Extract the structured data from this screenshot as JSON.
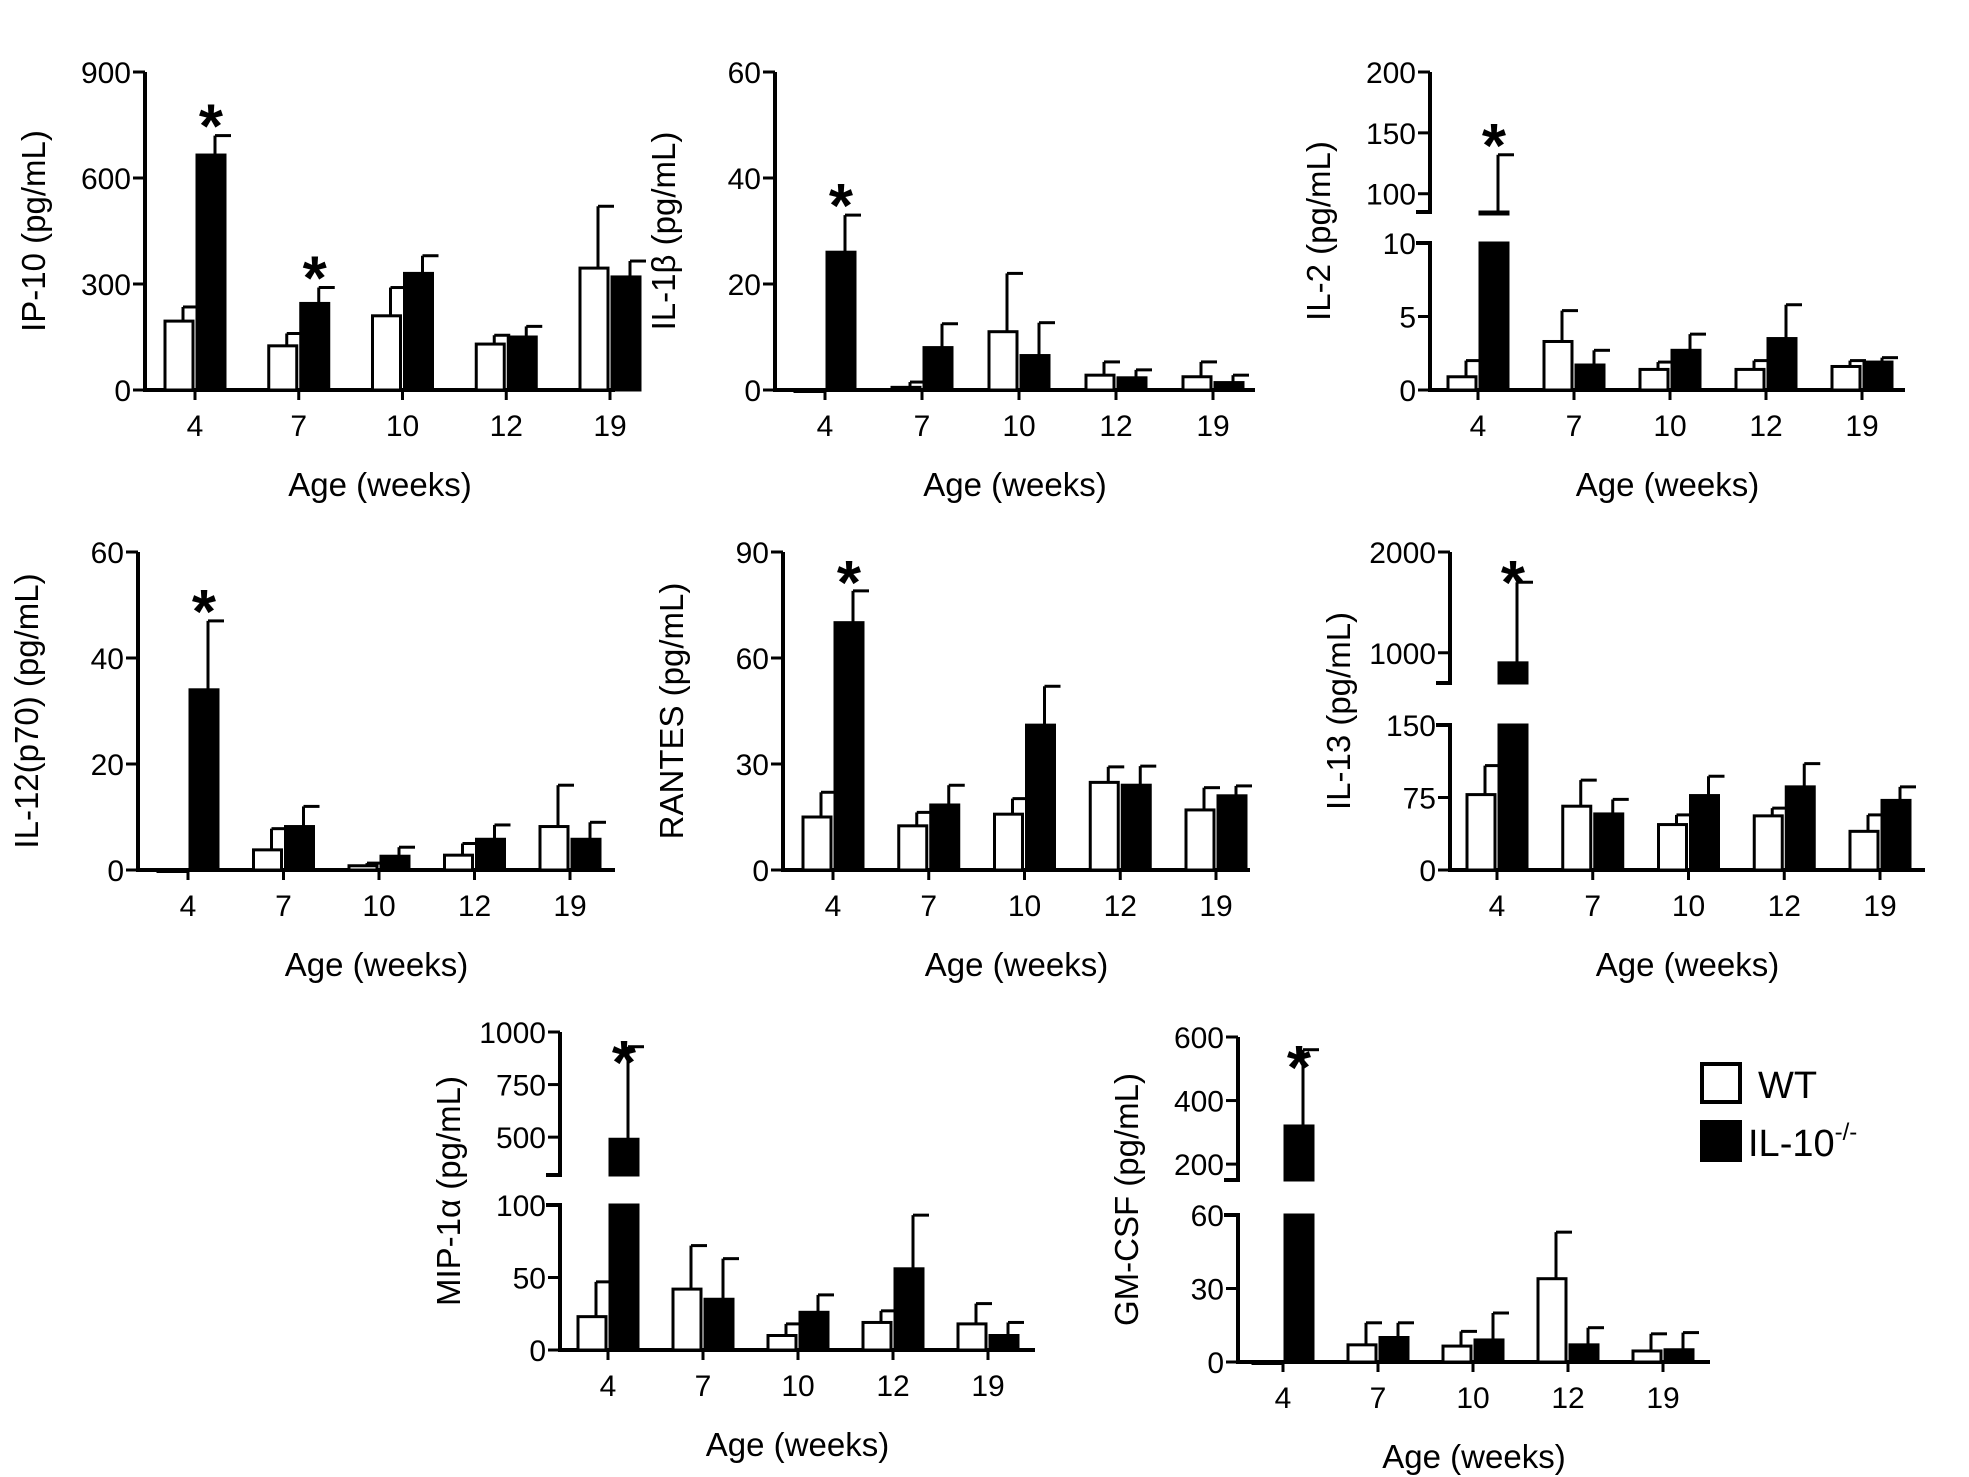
{
  "legend": {
    "wt_label": "WT",
    "ko_label": "IL-10",
    "ko_sup": "-/-"
  },
  "colors": {
    "wt": "#ffffff",
    "ko": "#000000",
    "stroke": "#000000"
  },
  "chart_data": [
    {
      "type": "bar",
      "ylabel": "IP-10 (pg/mL)",
      "xlabel": "Age (weeks)",
      "categories": [
        "4",
        "7",
        "10",
        "12",
        "19"
      ],
      "ylim": [
        0,
        900
      ],
      "yticks": [
        0,
        300,
        600,
        900
      ],
      "series": [
        {
          "name": "WT",
          "values": [
            195,
            125,
            210,
            130,
            345
          ],
          "errors": [
            40,
            35,
            80,
            25,
            175
          ]
        },
        {
          "name": "IL-10-/-",
          "values": [
            665,
            245,
            330,
            150,
            320
          ],
          "errors": [
            55,
            45,
            50,
            30,
            45
          ]
        }
      ],
      "significant": [
        0,
        1
      ]
    },
    {
      "type": "bar",
      "ylabel": "IL-1β (pg/mL)",
      "xlabel": "Age (weeks)",
      "categories": [
        "4",
        "7",
        "10",
        "12",
        "19"
      ],
      "ylim": [
        0,
        60
      ],
      "yticks": [
        0,
        20,
        40,
        60
      ],
      "series": [
        {
          "name": "WT",
          "values": [
            0,
            0.5,
            11,
            2.8,
            2.5
          ],
          "errors": [
            0,
            1,
            11,
            2.5,
            2.8
          ]
        },
        {
          "name": "IL-10-/-",
          "values": [
            26,
            8,
            6.5,
            2.3,
            1.4
          ],
          "errors": [
            7,
            4.5,
            6.2,
            1.5,
            1.4
          ]
        }
      ],
      "significant": [
        0
      ]
    },
    {
      "type": "bar",
      "ylabel": "IL-2 (pg/mL)",
      "xlabel": "Age (weeks)",
      "categories": [
        "4",
        "7",
        "10",
        "12",
        "19"
      ],
      "yticks": [
        0,
        5,
        10,
        100,
        150,
        200
      ],
      "axis_break": {
        "lower": [
          0,
          10
        ],
        "upper": [
          85,
          200
        ]
      },
      "series": [
        {
          "name": "WT",
          "values": [
            0.9,
            3.3,
            1.4,
            1.4,
            1.6
          ],
          "errors": [
            1.1,
            2.1,
            0.5,
            0.6,
            0.4
          ]
        },
        {
          "name": "IL-10-/-",
          "values": [
            82,
            1.7,
            2.7,
            3.5,
            1.9
          ],
          "errors": [
            50,
            1.0,
            1.1,
            2.3,
            0.3
          ]
        }
      ],
      "significant": [
        0
      ]
    },
    {
      "type": "bar",
      "ylabel": "IL-12(p70) (pg/mL)",
      "xlabel": "Age (weeks)",
      "categories": [
        "4",
        "7",
        "10",
        "12",
        "19"
      ],
      "ylim": [
        0,
        60
      ],
      "yticks": [
        0,
        20,
        40,
        60
      ],
      "series": [
        {
          "name": "WT",
          "values": [
            0,
            3.8,
            0.8,
            2.8,
            8.2
          ],
          "errors": [
            0,
            4,
            0.5,
            2.2,
            7.8
          ]
        },
        {
          "name": "IL-10-/-",
          "values": [
            34,
            8.2,
            2.6,
            5.8,
            5.8
          ],
          "errors": [
            13,
            3.8,
            1.7,
            2.7,
            3.2
          ]
        }
      ],
      "significant": [
        0
      ]
    },
    {
      "type": "bar",
      "ylabel": "RANTES (pg/mL)",
      "xlabel": "Age (weeks)",
      "categories": [
        "4",
        "7",
        "10",
        "12",
        "19"
      ],
      "ylim": [
        0,
        90
      ],
      "yticks": [
        0,
        30,
        60,
        90
      ],
      "series": [
        {
          "name": "WT",
          "values": [
            15,
            12.5,
            15.8,
            24.8,
            17
          ],
          "errors": [
            7,
            3.8,
            4.4,
            4.4,
            6.3
          ]
        },
        {
          "name": "IL-10-/-",
          "values": [
            70,
            18.4,
            41,
            24,
            21
          ],
          "errors": [
            9,
            5.6,
            11,
            5.4,
            2.8
          ]
        }
      ],
      "significant": [
        0
      ]
    },
    {
      "type": "bar",
      "ylabel": "IL-13 (pg/mL)",
      "xlabel": "Age (weeks)",
      "categories": [
        "4",
        "7",
        "10",
        "12",
        "19"
      ],
      "yticks": [
        0,
        75,
        150,
        1000,
        2000
      ],
      "axis_break": {
        "lower": [
          0,
          150
        ],
        "upper": [
          700,
          2000
        ]
      },
      "series": [
        {
          "name": "WT",
          "values": [
            78,
            66,
            47,
            56,
            40
          ],
          "errors": [
            30,
            27,
            10,
            8,
            17
          ]
        },
        {
          "name": "IL-10-/-",
          "values": [
            900,
            58,
            77,
            86,
            72
          ],
          "errors": [
            800,
            15,
            20,
            24,
            14
          ]
        }
      ],
      "significant": [
        0
      ]
    },
    {
      "type": "bar",
      "ylabel": "MIP-1α (pg/mL)",
      "xlabel": "Age (weeks)",
      "categories": [
        "4",
        "7",
        "10",
        "12",
        "19"
      ],
      "yticks": [
        0,
        50,
        100,
        500,
        750,
        1000
      ],
      "axis_break": {
        "lower": [
          0,
          100
        ],
        "upper": [
          320,
          1000
        ]
      },
      "series": [
        {
          "name": "WT",
          "values": [
            23,
            42,
            10,
            19,
            18
          ],
          "errors": [
            24,
            30,
            8,
            8,
            14
          ]
        },
        {
          "name": "IL-10-/-",
          "values": [
            490,
            35,
            26,
            56,
            10
          ],
          "errors": [
            440,
            28,
            12,
            37,
            9
          ]
        }
      ],
      "significant": [
        0
      ]
    },
    {
      "type": "bar",
      "ylabel": "GM-CSF (pg/mL)",
      "xlabel": "Age (weeks)",
      "categories": [
        "4",
        "7",
        "10",
        "12",
        "19"
      ],
      "yticks": [
        0,
        30,
        60,
        200,
        400,
        600
      ],
      "axis_break": {
        "lower": [
          0,
          60
        ],
        "upper": [
          150,
          600
        ]
      },
      "series": [
        {
          "name": "WT",
          "values": [
            0,
            7,
            6.5,
            34,
            4.5
          ],
          "errors": [
            0,
            9,
            6,
            19,
            7
          ]
        },
        {
          "name": "IL-10-/-",
          "values": [
            320,
            10,
            9,
            7,
            5
          ],
          "errors": [
            240,
            6,
            11,
            7,
            7
          ]
        }
      ],
      "significant": [
        0
      ]
    }
  ]
}
